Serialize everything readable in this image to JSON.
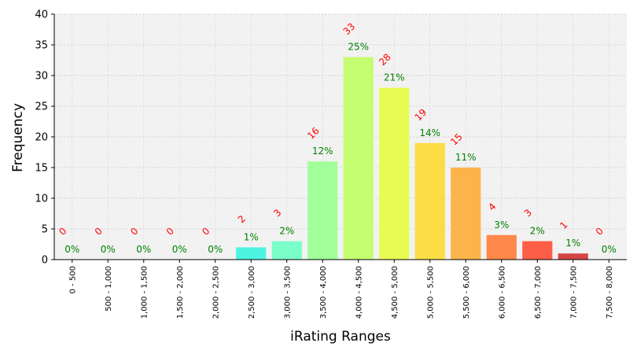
{
  "chart_data": {
    "type": "bar",
    "title": "",
    "xlabel": "iRating Ranges",
    "ylabel": "Frequency",
    "ylim": [
      0,
      40
    ],
    "yticks": [
      0,
      5,
      10,
      15,
      20,
      25,
      30,
      35,
      40
    ],
    "grid": true,
    "categories": [
      "0 - 500",
      "500 - 1,000",
      "1,000 - 1,500",
      "1,500 - 2,000",
      "2,000 - 2,500",
      "2,500 - 3,000",
      "3,000 - 3,500",
      "3,500 - 4,000",
      "4,000 - 4,500",
      "4,500 - 5,000",
      "5,000 - 5,500",
      "5,500 - 6,000",
      "6,000 - 6,500",
      "6,500 - 7,000",
      "7,000 - 7,500",
      "7,500 - 8,000"
    ],
    "values": [
      0,
      0,
      0,
      0,
      0,
      2,
      3,
      16,
      33,
      28,
      19,
      15,
      4,
      3,
      1,
      0
    ],
    "count_labels": [
      "0",
      "0",
      "0",
      "0",
      "0",
      "2",
      "3",
      "16",
      "33",
      "28",
      "19",
      "15",
      "4",
      "3",
      "1",
      "0"
    ],
    "percent_labels": [
      "0%",
      "0%",
      "0%",
      "0%",
      "0%",
      "1%",
      "2%",
      "12%",
      "25%",
      "21%",
      "14%",
      "11%",
      "3%",
      "2%",
      "1%",
      "0%"
    ],
    "bar_colors": [
      "#3b3bff",
      "#2b5cff",
      "#1f80ff",
      "#19a4ff",
      "#19c8f0",
      "#4df5e0",
      "#7affc8",
      "#a0ff99",
      "#c4fd70",
      "#e8fb52",
      "#fcdc45",
      "#fdb34b",
      "#ff884a",
      "#fd5e48",
      "#d64545",
      "#a02a2a"
    ],
    "count_label_color": "#ff0000",
    "percent_label_color": "#008000",
    "plot_background": "#f2f2f2"
  }
}
